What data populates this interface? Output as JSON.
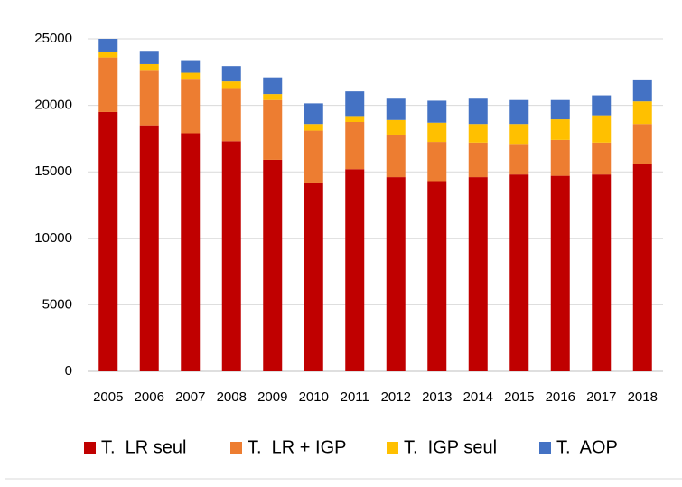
{
  "chart_data": {
    "type": "stacked_bar",
    "categories": [
      "2005",
      "2006",
      "2007",
      "2008",
      "2009",
      "2010",
      "2011",
      "2012",
      "2013",
      "2014",
      "2015",
      "2016",
      "2017",
      "2018"
    ],
    "series": [
      {
        "name": "T.  LR seul",
        "color": "#c00000",
        "values": [
          19500,
          18500,
          17900,
          17300,
          15900,
          14200,
          15200,
          14600,
          14300,
          14600,
          14800,
          14700,
          14800,
          15600
        ]
      },
      {
        "name": "T.  LR + IGP",
        "color": "#ed7d31",
        "values": [
          4100,
          4100,
          4100,
          4000,
          4500,
          3900,
          3550,
          3200,
          2950,
          2600,
          2300,
          2700,
          2400,
          3000
        ]
      },
      {
        "name": "T.  IGP seul",
        "color": "#ffc000",
        "values": [
          450,
          500,
          450,
          500,
          450,
          500,
          450,
          1100,
          1450,
          1400,
          1500,
          1550,
          2050,
          1700
        ]
      },
      {
        "name": "T.  AOP",
        "color": "#4472c4",
        "values": [
          950,
          1000,
          950,
          1150,
          1250,
          1550,
          1850,
          1600,
          1650,
          1900,
          1800,
          1450,
          1500,
          1650
        ]
      }
    ],
    "ylim": [
      0,
      25000
    ],
    "yticks": [
      0,
      5000,
      10000,
      15000,
      20000,
      25000
    ],
    "grid": true,
    "legend": "bottom"
  }
}
